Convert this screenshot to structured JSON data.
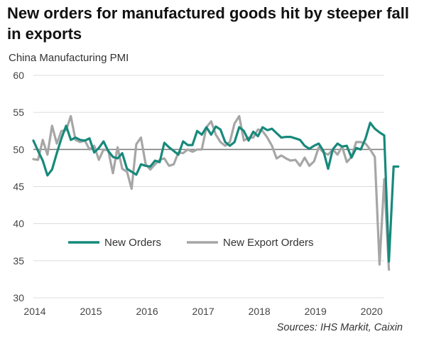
{
  "title": "New orders for manufactured goods hit by steeper fall in exports",
  "source": "Sources: IHS Markit, Caixin",
  "colors": {
    "new_orders": "#17897b",
    "export_orders": "#a6a6a6",
    "reference": "#7f7f7f",
    "grid": "#dcdcdc"
  },
  "chart_data": {
    "type": "line",
    "title": "New orders for manufactured goods hit by steeper fall in exports",
    "subtitle": "China Manufacturing PMI",
    "xlabel": "",
    "ylabel": "",
    "xlim": [
      2014.0,
      2020.25
    ],
    "ylim": [
      30,
      60
    ],
    "yticks": [
      "30",
      "35",
      "40",
      "45",
      "50",
      "55",
      "60"
    ],
    "xticks": [
      {
        "value": 2014,
        "label": "2014"
      },
      {
        "value": 2015,
        "label": "2015"
      },
      {
        "value": 2016,
        "label": "2016"
      },
      {
        "value": 2017,
        "label": "2017"
      },
      {
        "value": 2018,
        "label": "2018"
      },
      {
        "value": 2019,
        "label": "2019"
      },
      {
        "value": 2020,
        "label": "2020"
      }
    ],
    "reference_line": 50,
    "grid": "horizontal",
    "legend_position": "lower-center",
    "series": [
      {
        "name": "New Orders",
        "color": "#17897b",
        "values": [
          [
            2014.0,
            51.2
          ],
          [
            2014.083,
            49.8
          ],
          [
            2014.167,
            48.5
          ],
          [
            2014.25,
            46.5
          ],
          [
            2014.333,
            47.3
          ],
          [
            2014.417,
            49.5
          ],
          [
            2014.5,
            51.5
          ],
          [
            2014.583,
            53.2
          ],
          [
            2014.667,
            51.3
          ],
          [
            2014.75,
            51.6
          ],
          [
            2014.833,
            51.3
          ],
          [
            2014.917,
            51.2
          ],
          [
            2015.0,
            51.5
          ],
          [
            2015.083,
            49.6
          ],
          [
            2015.167,
            50.2
          ],
          [
            2015.25,
            51.1
          ],
          [
            2015.333,
            49.8
          ],
          [
            2015.417,
            49.0
          ],
          [
            2015.5,
            48.8
          ],
          [
            2015.583,
            49.5
          ],
          [
            2015.667,
            47.4
          ],
          [
            2015.75,
            47.0
          ],
          [
            2015.833,
            46.6
          ],
          [
            2015.917,
            48.0
          ],
          [
            2016.0,
            47.8
          ],
          [
            2016.083,
            47.7
          ],
          [
            2016.167,
            48.5
          ],
          [
            2016.25,
            48.3
          ],
          [
            2016.333,
            50.9
          ],
          [
            2016.417,
            50.3
          ],
          [
            2016.5,
            49.8
          ],
          [
            2016.583,
            49.3
          ],
          [
            2016.667,
            51.1
          ],
          [
            2016.75,
            50.6
          ],
          [
            2016.833,
            50.6
          ],
          [
            2016.917,
            52.5
          ],
          [
            2017.0,
            52.0
          ],
          [
            2017.083,
            53.0
          ],
          [
            2017.167,
            52.0
          ],
          [
            2017.25,
            53.1
          ],
          [
            2017.333,
            52.7
          ],
          [
            2017.417,
            51.0
          ],
          [
            2017.5,
            50.5
          ],
          [
            2017.583,
            51.0
          ],
          [
            2017.667,
            53.0
          ],
          [
            2017.75,
            52.5
          ],
          [
            2017.833,
            51.2
          ],
          [
            2017.917,
            52.4
          ],
          [
            2018.0,
            51.8
          ],
          [
            2018.083,
            53.0
          ],
          [
            2018.167,
            52.6
          ],
          [
            2018.25,
            52.8
          ],
          [
            2018.333,
            52.2
          ],
          [
            2018.417,
            51.6
          ],
          [
            2018.5,
            51.7
          ],
          [
            2018.583,
            51.7
          ],
          [
            2018.667,
            51.5
          ],
          [
            2018.75,
            51.3
          ],
          [
            2018.833,
            50.5
          ],
          [
            2018.917,
            50.1
          ],
          [
            2019.0,
            50.5
          ],
          [
            2019.083,
            50.8
          ],
          [
            2019.167,
            49.8
          ],
          [
            2019.25,
            47.4
          ],
          [
            2019.333,
            50.0
          ],
          [
            2019.417,
            50.8
          ],
          [
            2019.5,
            50.4
          ],
          [
            2019.583,
            50.5
          ],
          [
            2019.667,
            48.9
          ],
          [
            2019.75,
            50.2
          ],
          [
            2019.833,
            50.0
          ],
          [
            2019.917,
            51.5
          ],
          [
            2020.0,
            53.6
          ],
          [
            2020.083,
            52.8
          ],
          [
            2020.167,
            52.3
          ],
          [
            2020.25,
            51.9
          ],
          [
            2020.333,
            34.9
          ],
          [
            2020.417,
            47.7
          ],
          [
            2020.5,
            47.7
          ]
        ]
      },
      {
        "name": "New Export Orders",
        "color": "#a6a6a6",
        "values": [
          [
            2014.0,
            48.7
          ],
          [
            2014.083,
            48.6
          ],
          [
            2014.167,
            51.3
          ],
          [
            2014.25,
            49.3
          ],
          [
            2014.333,
            53.2
          ],
          [
            2014.417,
            50.8
          ],
          [
            2014.5,
            52.5
          ],
          [
            2014.583,
            52.6
          ],
          [
            2014.667,
            54.5
          ],
          [
            2014.75,
            51.3
          ],
          [
            2014.833,
            51.0
          ],
          [
            2014.917,
            51.2
          ],
          [
            2015.0,
            50.0
          ],
          [
            2015.083,
            50.5
          ],
          [
            2015.167,
            48.6
          ],
          [
            2015.25,
            50.0
          ],
          [
            2015.333,
            49.9
          ],
          [
            2015.417,
            46.8
          ],
          [
            2015.5,
            50.3
          ],
          [
            2015.583,
            47.4
          ],
          [
            2015.667,
            47.0
          ],
          [
            2015.75,
            44.7
          ],
          [
            2015.833,
            50.7
          ],
          [
            2015.917,
            51.6
          ],
          [
            2016.0,
            48.0
          ],
          [
            2016.083,
            47.3
          ],
          [
            2016.167,
            48.0
          ],
          [
            2016.25,
            48.6
          ],
          [
            2016.333,
            48.8
          ],
          [
            2016.417,
            47.8
          ],
          [
            2016.5,
            48.0
          ],
          [
            2016.583,
            49.6
          ],
          [
            2016.667,
            49.5
          ],
          [
            2016.75,
            50.0
          ],
          [
            2016.833,
            49.7
          ],
          [
            2016.917,
            50.0
          ],
          [
            2017.0,
            50.0
          ],
          [
            2017.083,
            53.0
          ],
          [
            2017.167,
            53.8
          ],
          [
            2017.25,
            52.0
          ],
          [
            2017.333,
            51.0
          ],
          [
            2017.417,
            50.5
          ],
          [
            2017.5,
            51.0
          ],
          [
            2017.583,
            53.5
          ],
          [
            2017.667,
            54.5
          ],
          [
            2017.75,
            51.2
          ],
          [
            2017.833,
            51.6
          ],
          [
            2017.917,
            51.6
          ],
          [
            2018.0,
            52.7
          ],
          [
            2018.083,
            52.5
          ],
          [
            2018.167,
            51.6
          ],
          [
            2018.25,
            50.5
          ],
          [
            2018.333,
            48.8
          ],
          [
            2018.417,
            49.2
          ],
          [
            2018.5,
            48.8
          ],
          [
            2018.583,
            48.5
          ],
          [
            2018.667,
            48.6
          ],
          [
            2018.75,
            47.8
          ],
          [
            2018.833,
            48.9
          ],
          [
            2018.917,
            47.8
          ],
          [
            2019.0,
            48.4
          ],
          [
            2019.083,
            50.3
          ],
          [
            2019.167,
            49.6
          ],
          [
            2019.25,
            49.3
          ],
          [
            2019.333,
            50.0
          ],
          [
            2019.417,
            49.3
          ],
          [
            2019.5,
            50.4
          ],
          [
            2019.583,
            48.3
          ],
          [
            2019.667,
            49.0
          ],
          [
            2019.75,
            51.0
          ],
          [
            2019.833,
            51.0
          ],
          [
            2019.917,
            50.8
          ],
          [
            2020.0,
            50.0
          ],
          [
            2020.083,
            49.0
          ],
          [
            2020.167,
            34.5
          ],
          [
            2020.25,
            46.0
          ],
          [
            2020.333,
            33.8
          ]
        ]
      }
    ]
  }
}
